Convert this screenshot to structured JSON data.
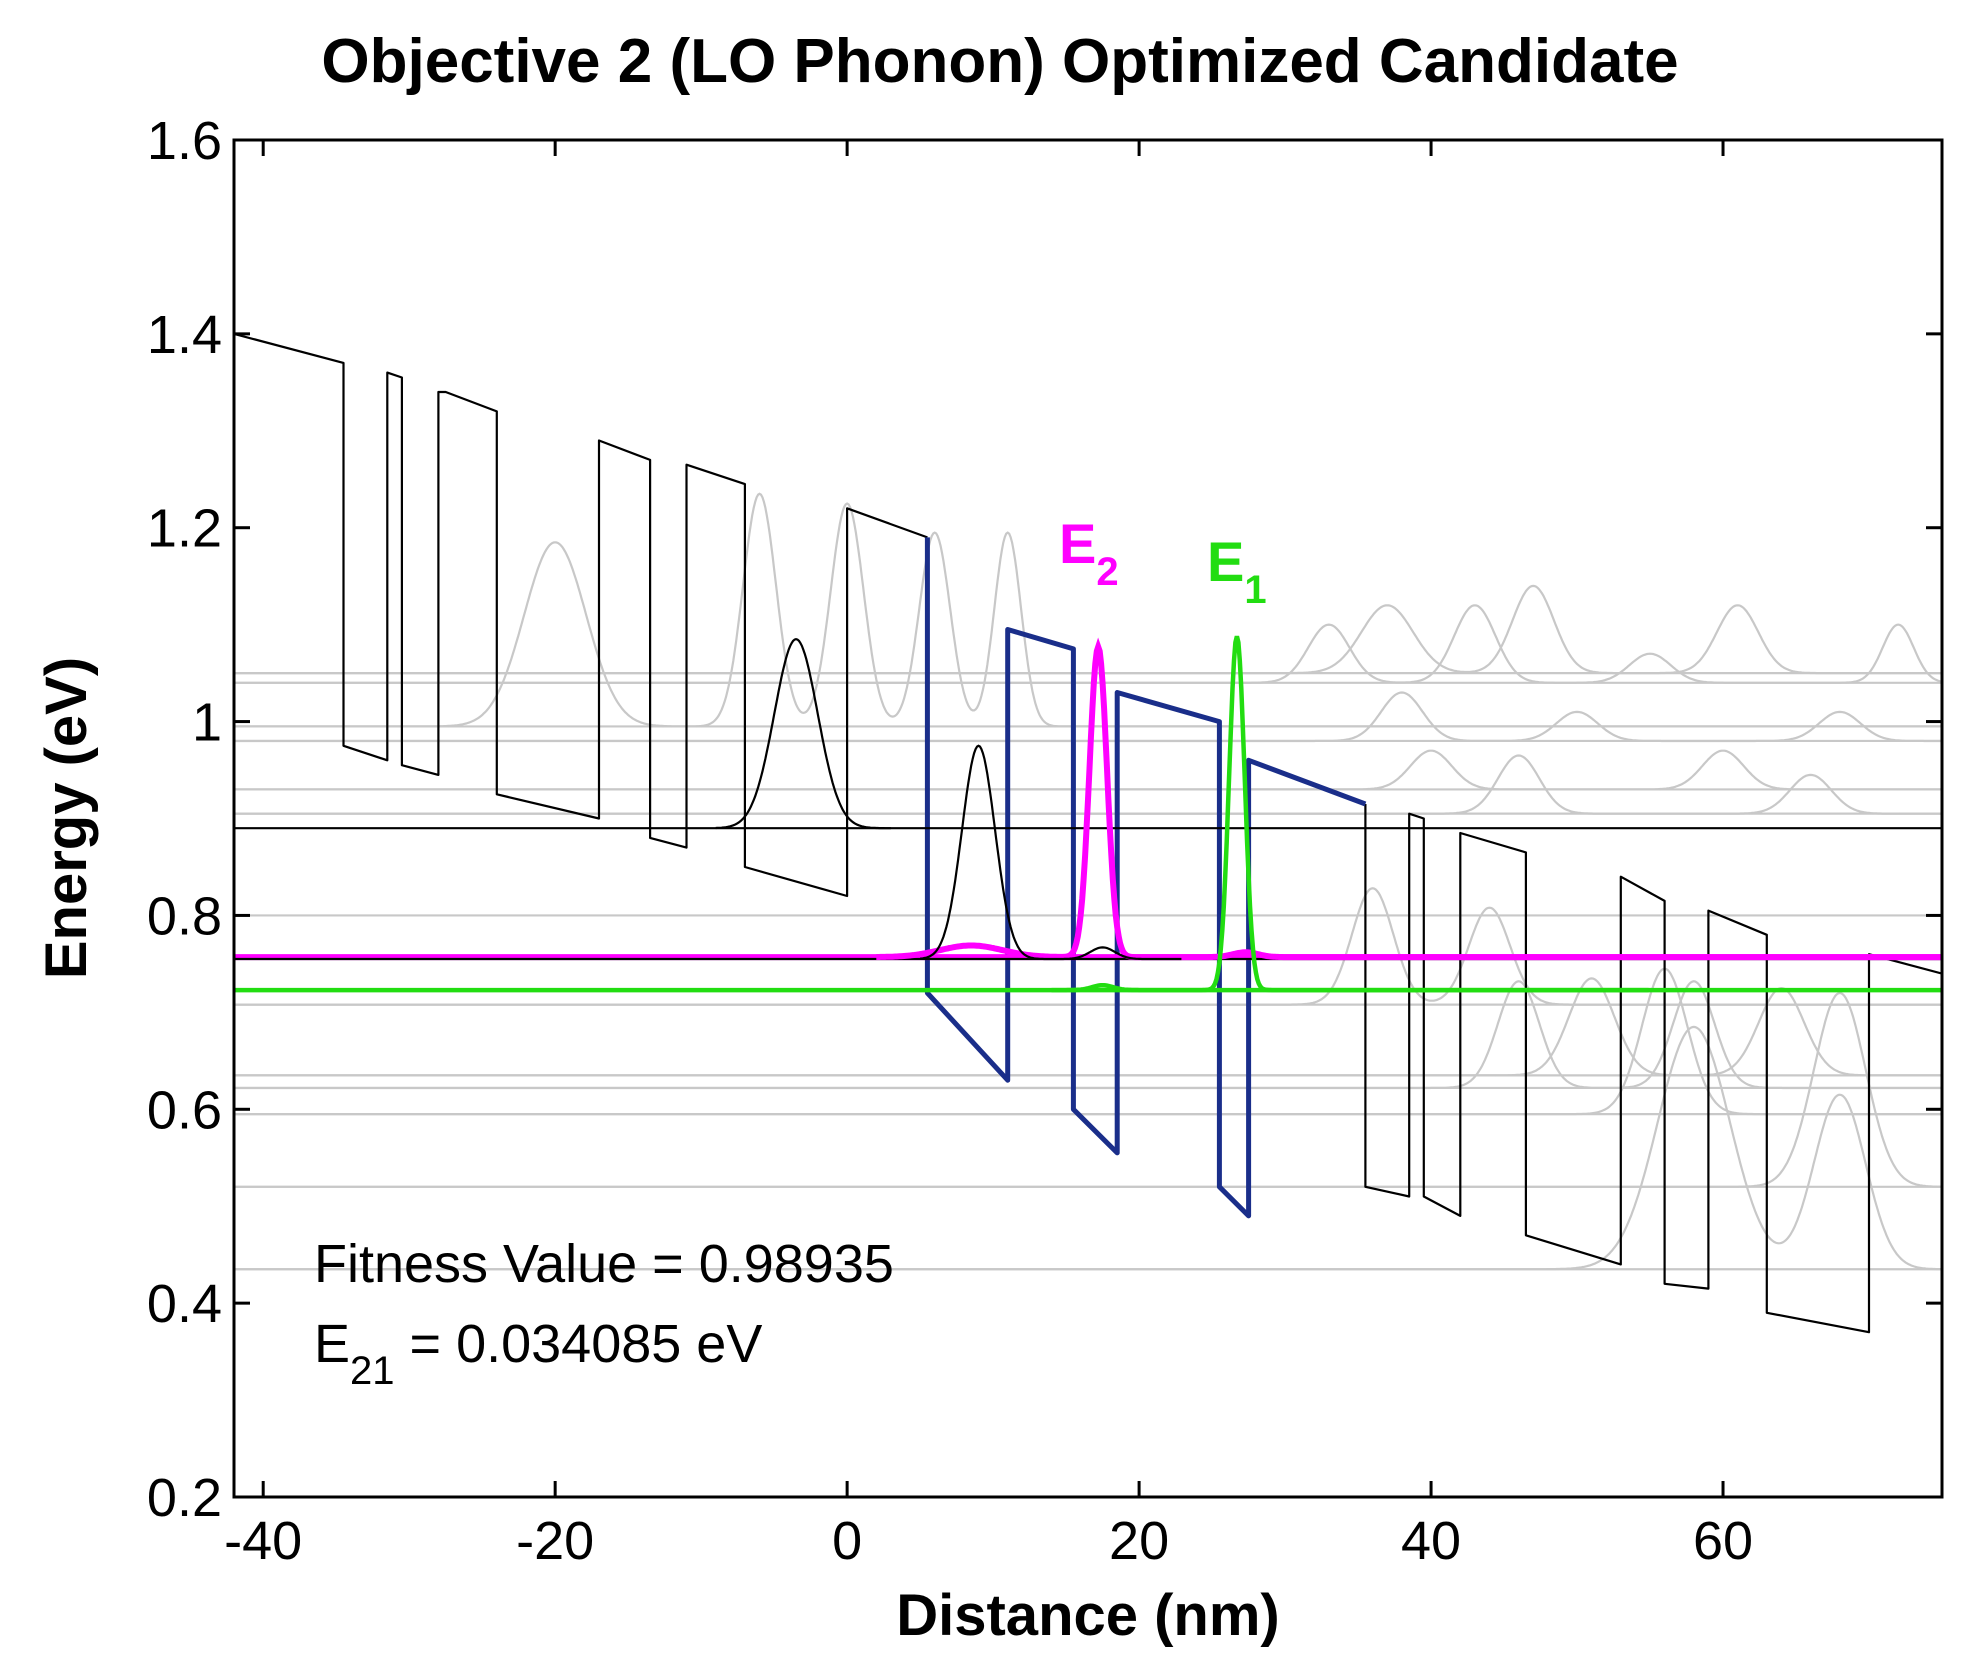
{
  "chart_data": {
    "type": "line",
    "title": "Objective 2 (LO Phonon) Optimized Candidate",
    "xlabel": "Distance (nm)",
    "ylabel": "Energy (eV)",
    "xlim": [
      -42,
      75
    ],
    "ylim": [
      0.2,
      1.6
    ],
    "xticks": [
      -40,
      -20,
      0,
      20,
      40,
      60
    ],
    "xtick_labels": [
      "-40",
      "-20",
      "0",
      "20",
      "40",
      "60"
    ],
    "yticks": [
      0.2,
      0.4,
      0.6,
      0.8,
      1.0,
      1.2,
      1.4,
      1.6
    ],
    "ytick_labels": [
      "0.2",
      "0.4",
      "0.6",
      "0.8",
      "1",
      "1.2",
      "1.4",
      "1.6"
    ],
    "colors": {
      "potential": "#000000",
      "active_region": "#1a2e8a",
      "e2": "#ff00ff",
      "e1": "#22dd11",
      "background_states": "#c8c8c8"
    },
    "annotations": {
      "e2_label": "E",
      "e2_sub": "2",
      "e1_label": "E",
      "e1_sub": "1",
      "fitness_text": "Fitness Value = 0.98935",
      "e21_label": "E",
      "e21_sub": "21",
      "e21_value": " = 0.034085 eV"
    },
    "series": [
      {
        "name": "conduction band potential",
        "style": "potential",
        "x": [
          -42,
          -34.5,
          -34.5,
          -34.5,
          -31.5,
          -31.5,
          -30.5,
          -30.5,
          -28,
          -28,
          -27.5,
          -27.5,
          -24,
          -24,
          -17,
          -17,
          -13.5,
          -13.5,
          -11,
          -11,
          -7,
          -7,
          0,
          0,
          5.5
        ],
        "y": [
          1.4,
          1.37,
          1.17,
          0.975,
          0.96,
          1.36,
          1.355,
          0.955,
          0.945,
          1.34,
          1.34,
          1.34,
          1.32,
          0.925,
          0.9,
          1.29,
          1.27,
          0.88,
          0.87,
          1.265,
          1.245,
          0.85,
          0.82,
          1.22,
          1.19
        ]
      },
      {
        "name": "conduction band potential (collector)",
        "style": "potential",
        "x": [
          35.5,
          35.5,
          38.5,
          38.5,
          39.5,
          39.5,
          42,
          42,
          46.5,
          46.5,
          53,
          53,
          56,
          56,
          59,
          59,
          63,
          63,
          70,
          70,
          75
        ],
        "y": [
          0.915,
          0.52,
          0.51,
          0.905,
          0.9,
          0.51,
          0.49,
          0.885,
          0.865,
          0.47,
          0.44,
          0.84,
          0.815,
          0.42,
          0.415,
          0.805,
          0.78,
          0.39,
          0.37,
          0.76,
          0.74
        ]
      },
      {
        "name": "active region potential",
        "style": "active_region",
        "x": [
          5.5,
          5.5,
          11,
          11,
          15.5,
          15.5,
          18.5,
          18.5,
          25.5,
          25.5,
          27.5,
          27.5,
          35.5
        ],
        "y": [
          1.19,
          0.72,
          0.63,
          1.095,
          1.075,
          0.6,
          0.555,
          1.03,
          1.0,
          0.52,
          0.49,
          0.96,
          0.915
        ]
      },
      {
        "name": "E2 level",
        "style": "e2",
        "x": [
          -42,
          75
        ],
        "y": [
          0.757,
          0.757
        ]
      },
      {
        "name": "E1 level",
        "style": "e1",
        "x": [
          -42,
          75
        ],
        "y": [
          0.723,
          0.723
        ]
      },
      {
        "name": "bound state level 0.755",
        "style": "potential",
        "x": [
          -42,
          75
        ],
        "y": [
          0.755,
          0.755
        ]
      },
      {
        "name": "bound state level 0.89",
        "style": "potential",
        "x": [
          -42,
          75
        ],
        "y": [
          0.89,
          0.89
        ]
      }
    ],
    "wavefunctions": [
      {
        "name": "E2 |psi|^2",
        "style": "e2",
        "base": 0.757,
        "peaks": [
          {
            "x": 17.2,
            "h": 0.32,
            "w": 0.85
          },
          {
            "x": 8.5,
            "h": 0.012,
            "w": 3.0
          },
          {
            "x": 27.3,
            "h": 0.005,
            "w": 1.2
          }
        ],
        "range": [
          2,
          75
        ]
      },
      {
        "name": "E1 |psi|^2",
        "style": "e1",
        "base": 0.723,
        "peaks": [
          {
            "x": 26.7,
            "h": 0.365,
            "w": 0.75
          },
          {
            "x": 17.5,
            "h": 0.005,
            "w": 1.0
          }
        ],
        "range": [
          14,
          55
        ]
      },
      {
        "name": "state 0.755",
        "style": "potential",
        "base": 0.755,
        "peaks": [
          {
            "x": 9,
            "h": 0.22,
            "w": 1.6
          },
          {
            "x": 17.5,
            "h": 0.012,
            "w": 1.2
          }
        ],
        "range": [
          5,
          23
        ]
      },
      {
        "name": "state 0.89",
        "style": "potential",
        "base": 0.89,
        "peaks": [
          {
            "x": -3.5,
            "h": 0.195,
            "w": 2.1
          },
          {
            "x": -5,
            "h": 0.0,
            "w": 1.0
          }
        ],
        "range": [
          -9,
          3
        ]
      }
    ],
    "background_states": [
      {
        "base": 1.05,
        "peaks": [
          {
            "x": 37,
            "h": 0.07,
            "w": 2.5
          },
          {
            "x": 47,
            "h": 0.09,
            "w": 2.0
          },
          {
            "x": 61,
            "h": 0.07,
            "w": 2.0
          }
        ]
      },
      {
        "base": 1.04,
        "peaks": [
          {
            "x": 33,
            "h": 0.06,
            "w": 2.0
          },
          {
            "x": 43,
            "h": 0.08,
            "w": 2.0
          },
          {
            "x": 55,
            "h": 0.03,
            "w": 2.0
          },
          {
            "x": 72,
            "h": 0.06,
            "w": 1.5
          }
        ]
      },
      {
        "base": 0.995,
        "peaks": [
          {
            "x": -20,
            "h": 0.19,
            "w": 3.0
          },
          {
            "x": -6,
            "h": 0.24,
            "w": 1.6
          },
          {
            "x": 0,
            "h": 0.23,
            "w": 1.6
          },
          {
            "x": 6,
            "h": 0.2,
            "w": 1.5
          },
          {
            "x": 11,
            "h": 0.2,
            "w": 1.3
          }
        ]
      },
      {
        "base": 0.98,
        "peaks": [
          {
            "x": 38,
            "h": 0.05,
            "w": 2.0
          },
          {
            "x": 50,
            "h": 0.03,
            "w": 2.0
          },
          {
            "x": 68,
            "h": 0.03,
            "w": 2.0
          }
        ]
      },
      {
        "base": 0.93,
        "peaks": [
          {
            "x": 40,
            "h": 0.04,
            "w": 2.0
          },
          {
            "x": 60,
            "h": 0.04,
            "w": 2.0
          }
        ]
      },
      {
        "base": 0.905,
        "peaks": [
          {
            "x": 46,
            "h": 0.06,
            "w": 2.0
          },
          {
            "x": 66,
            "h": 0.04,
            "w": 2.0
          }
        ]
      },
      {
        "base": 0.8,
        "peaks": []
      },
      {
        "base": 0.708,
        "peaks": [
          {
            "x": 36,
            "h": 0.12,
            "w": 2.0
          },
          {
            "x": 44,
            "h": 0.1,
            "w": 2.0
          }
        ]
      },
      {
        "base": 0.635,
        "peaks": [
          {
            "x": 51,
            "h": 0.1,
            "w": 2.2
          },
          {
            "x": 64,
            "h": 0.09,
            "w": 2.2
          }
        ]
      },
      {
        "base": 0.622,
        "peaks": [
          {
            "x": 46,
            "h": 0.11,
            "w": 2.0
          },
          {
            "x": 58,
            "h": 0.11,
            "w": 2.0
          }
        ]
      },
      {
        "base": 0.595,
        "peaks": [
          {
            "x": 56,
            "h": 0.15,
            "w": 2.2
          }
        ]
      },
      {
        "base": 0.52,
        "peaks": [
          {
            "x": 68,
            "h": 0.2,
            "w": 2.5
          }
        ]
      },
      {
        "base": 0.435,
        "peaks": [
          {
            "x": 58,
            "h": 0.25,
            "w": 3.5
          },
          {
            "x": 68,
            "h": 0.18,
            "w": 2.5
          }
        ]
      }
    ]
  }
}
